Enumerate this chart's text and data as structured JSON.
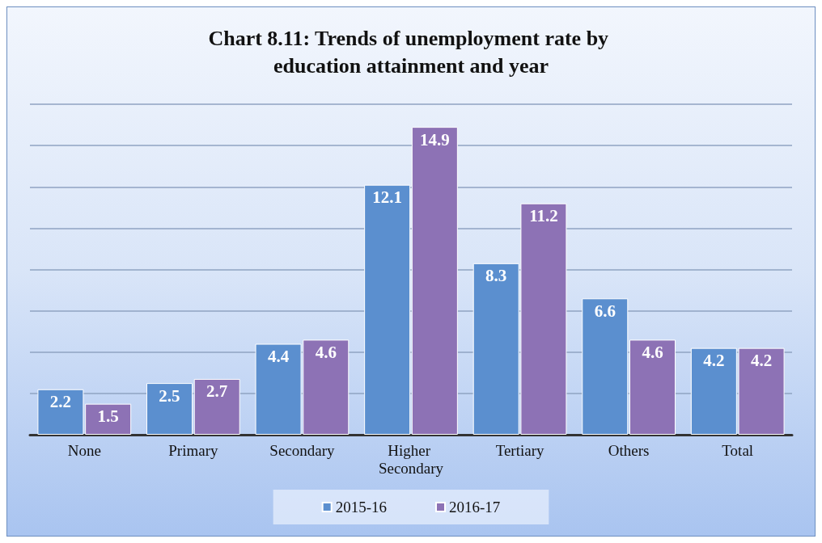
{
  "chart_data": {
    "type": "bar",
    "title": "Chart 8.11: Trends of unemployment rate by education attainment and year",
    "categories": [
      "None",
      "Primary",
      "Secondary",
      "Higher Secondary",
      "Tertiary",
      "Others",
      "Total"
    ],
    "series": [
      {
        "name": "2015-16",
        "color": "#5b8fcf",
        "values": [
          2.2,
          2.5,
          4.4,
          12.1,
          8.3,
          6.6,
          4.2
        ]
      },
      {
        "name": "2016-17",
        "color": "#8d72b5",
        "values": [
          1.5,
          2.7,
          4.6,
          14.9,
          11.2,
          4.6,
          4.2
        ]
      }
    ],
    "ylim": [
      0,
      16
    ],
    "yticks": [
      {
        "value": 0,
        "label": null
      },
      {
        "value": 2,
        "label": null
      },
      {
        "value": 4,
        "label": null
      },
      {
        "value": 6,
        "label": null
      },
      {
        "value": 8,
        "label": null
      },
      {
        "value": 10,
        "label": null
      },
      {
        "value": 12,
        "label": null
      },
      {
        "value": 14,
        "label": null
      },
      {
        "value": 16,
        "label": null
      }
    ],
    "tick_labels": "x",
    "grid": "y",
    "legend": "bottom",
    "data_labels": true
  }
}
